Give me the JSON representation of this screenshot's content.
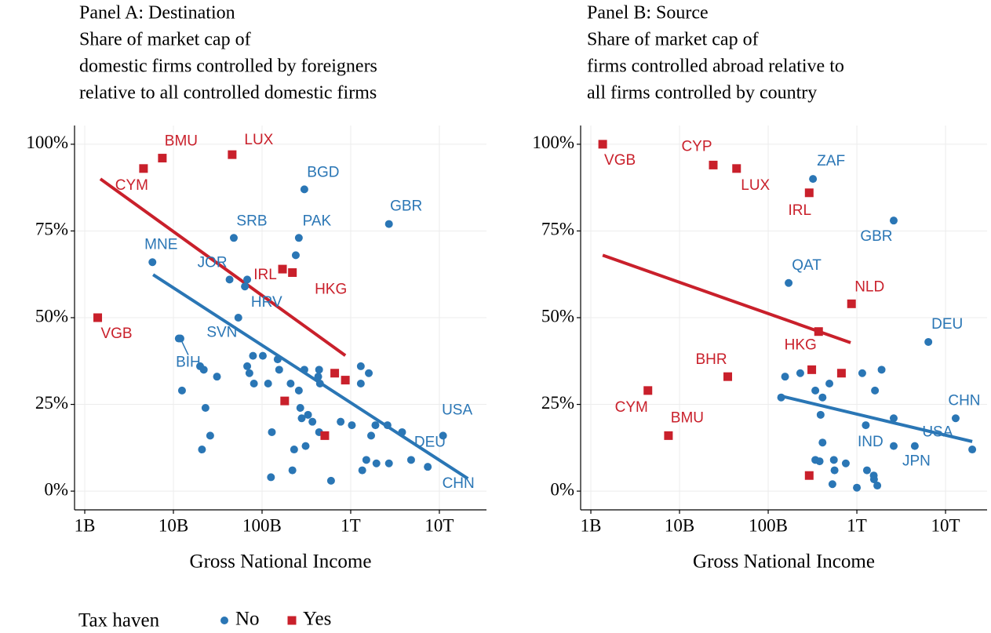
{
  "chart_data": [
    {
      "type": "scatter",
      "title": [
        "Panel A: Destination",
        "Share of market cap of",
        "domestic firms controlled by foreigners",
        "relative to all controlled domestic firms"
      ],
      "xlabel": "Gross National Income",
      "log_x": true,
      "grid": true,
      "legend_title": "Tax haven",
      "xlim": [
        767000000.0,
        34000000000000.0
      ],
      "xticks": [
        {
          "value": 1000000000.0,
          "label": "1B"
        },
        {
          "value": 10000000000.0,
          "label": "10B"
        },
        {
          "value": 100000000000.0,
          "label": "100B"
        },
        {
          "value": 1000000000000.0,
          "label": "1T"
        },
        {
          "value": 10000000000000.0,
          "label": "10T"
        }
      ],
      "ylim": [
        -5.4,
        105.4
      ],
      "yticks": [
        {
          "value": 0,
          "label": "0%"
        },
        {
          "value": 25,
          "label": "25%"
        },
        {
          "value": 50,
          "label": "50%"
        },
        {
          "value": 75,
          "label": "75%"
        },
        {
          "value": 100,
          "label": "100%"
        }
      ],
      "series": [
        {
          "name": "No",
          "color": "#2a76b5",
          "marker": "circle",
          "x": [
            300000000000.0,
            2700000000000.0,
            48000000000.0,
            260000000000.0,
            5800000000.0,
            43000000000.0,
            54000000000.0,
            11500000000.0,
            12000000000.0,
            11000000000000.0,
            4800000000000.0,
            7400000000000.0,
            240000000000.0,
            64000000000.0,
            68000000000.0,
            12500000000.0,
            20000000000.0,
            22000000000.0,
            31000000000.0,
            23000000000.0,
            26000000000.0,
            21000000000.0,
            68000000000.0,
            72000000000.0,
            81000000000.0,
            79000000000.0,
            117000000000.0,
            102000000000.0,
            126000000000.0,
            129000000000.0,
            150000000000.0,
            156000000000.0,
            210000000000.0,
            220000000000.0,
            230000000000.0,
            260000000000.0,
            270000000000.0,
            280000000000.0,
            300000000000.0,
            310000000000.0,
            330000000000.0,
            370000000000.0,
            430000000000.0,
            440000000000.0,
            450000000000.0,
            440000000000.0,
            600000000000.0,
            770000000000.0,
            1030000000000.0,
            1300000000000.0,
            1300000000000.0,
            1600000000000.0,
            1350000000000.0,
            1500000000000.0,
            1700000000000.0,
            1900000000000.0,
            1950000000000.0,
            2600000000000.0,
            2700000000000.0,
            3800000000000.0
          ],
          "values": [
            87,
            77,
            73,
            73,
            66,
            61,
            50,
            44,
            44,
            16,
            9,
            7,
            68,
            59,
            61,
            29,
            36,
            35,
            33,
            24,
            16,
            12,
            36,
            34,
            31,
            39,
            31,
            39,
            4,
            17,
            38,
            35,
            31,
            6,
            12,
            29,
            24,
            21,
            35,
            13,
            22,
            20,
            33,
            35,
            31,
            17,
            3,
            20,
            19,
            36,
            31,
            34,
            6,
            9,
            16,
            19,
            8,
            19,
            8,
            17
          ],
          "labels": [
            "BGD",
            "GBR",
            "SRB",
            "PAK",
            "MNE",
            "JOR",
            "HRV",
            "SVN",
            "BIH",
            "USA",
            "DEU",
            "CHN",
            null,
            null,
            null,
            null,
            null,
            null,
            null,
            null,
            null,
            null,
            null,
            null,
            null,
            null,
            null,
            null,
            null,
            null,
            null,
            null,
            null,
            null,
            null,
            null,
            null,
            null,
            null,
            null,
            null,
            null,
            null,
            null,
            null,
            null,
            null,
            null,
            null,
            null,
            null,
            null,
            null,
            null,
            null,
            null,
            null,
            null,
            null,
            null
          ],
          "fit": {
            "x": [
              5900000000.0,
              21000000000000.0
            ],
            "y": [
              62.4,
              3.6
            ]
          }
        },
        {
          "name": "Yes",
          "color": "#c9202b",
          "marker": "square",
          "x": [
            1400000000.0,
            4600000000.0,
            7500000000.0,
            46000000000.0,
            170000000000.0,
            220000000000.0,
            180000000000.0,
            660000000000.0,
            870000000000.0,
            510000000000.0
          ],
          "values": [
            50,
            93,
            96,
            97,
            64,
            63,
            26,
            34,
            32,
            16
          ],
          "labels": [
            "VGB",
            "CYM",
            "BMU",
            "LUX",
            "IRL",
            "HKG",
            null,
            null,
            null,
            null
          ],
          "fit": {
            "x": [
              1500000000.0,
              870000000000.0
            ],
            "y": [
              90,
              39.1
            ]
          }
        }
      ]
    },
    {
      "type": "scatter",
      "title": [
        "Panel B: Source",
        "Share of market cap of",
        "firms controlled abroad relative to",
        "all firms controlled by country"
      ],
      "xlabel": "Gross National Income",
      "log_x": true,
      "grid": true,
      "xlim": [
        767000000.0,
        29400000000000.0
      ],
      "xticks": [
        {
          "value": 1000000000.0,
          "label": "1B"
        },
        {
          "value": 10000000000.0,
          "label": "10B"
        },
        {
          "value": 100000000000.0,
          "label": "100B"
        },
        {
          "value": 1000000000000.0,
          "label": "1T"
        },
        {
          "value": 10000000000000.0,
          "label": "10T"
        }
      ],
      "ylim": [
        -5.4,
        105.4
      ],
      "yticks": [
        {
          "value": 0,
          "label": "0%"
        },
        {
          "value": 25,
          "label": "25%"
        },
        {
          "value": 50,
          "label": "50%"
        },
        {
          "value": 75,
          "label": "75%"
        },
        {
          "value": 100,
          "label": "100%"
        }
      ],
      "series": [
        {
          "color": "#2a76b5",
          "marker": "circle",
          "x": [
            320000000000.0,
            2600000000000.0,
            170000000000.0,
            6400000000000.0,
            13000000000000.0,
            4500000000000.0,
            2600000000000.0,
            1260000000000.0,
            20000000000000.0,
            155000000000.0,
            140000000000.0,
            230000000000.0,
            340000000000.0,
            410000000000.0,
            390000000000.0,
            410000000000.0,
            340000000000.0,
            380000000000.0,
            490000000000.0,
            550000000000.0,
            560000000000.0,
            750000000000.0,
            530000000000.0,
            1000000000000.0,
            1150000000000.0,
            1300000000000.0,
            1550000000000.0,
            1560000000000.0,
            1700000000000.0,
            1600000000000.0,
            1900000000000.0,
            2600000000000.0
          ],
          "values": [
            90,
            78,
            60,
            43,
            21,
            13,
            13,
            19,
            12,
            33,
            27,
            34,
            29,
            27,
            22,
            14,
            9,
            8.6,
            31,
            9,
            6,
            8,
            2,
            1,
            34,
            6,
            4.5,
            3.4,
            1.6,
            29,
            35,
            21
          ],
          "labels": [
            "ZAF",
            "GBR",
            "QAT",
            "DEU",
            "CHN",
            "USA",
            "JPN",
            "IND",
            null,
            null,
            null,
            null,
            null,
            null,
            null,
            null,
            null,
            null,
            null,
            null,
            null,
            null,
            null,
            null,
            null,
            null,
            null,
            null,
            null,
            null,
            null,
            null
          ],
          "fit": {
            "x": [
              140000000000.0,
              20000000000000.0
            ],
            "y": [
              27.4,
              14.3
            ]
          }
        },
        {
          "color": "#c9202b",
          "marker": "square",
          "x": [
            1360000000.0,
            24000000000.0,
            44000000000.0,
            290000000000.0,
            870000000000.0,
            370000000000.0,
            35000000000.0,
            4400000000.0,
            7500000000.0,
            310000000000.0,
            670000000000.0,
            290000000000.0
          ],
          "values": [
            100,
            94,
            93,
            86,
            54,
            46,
            33,
            29,
            16,
            35,
            34,
            4.5
          ],
          "labels": [
            "VGB",
            "CYP",
            "LUX",
            "IRL",
            "NLD",
            "HKG",
            "BHR",
            "CYM",
            "BMU",
            null,
            null,
            null
          ],
          "fit": {
            "x": [
              1360000000.0,
              850000000000.0
            ],
            "y": [
              68,
              42.8
            ]
          }
        }
      ]
    }
  ]
}
